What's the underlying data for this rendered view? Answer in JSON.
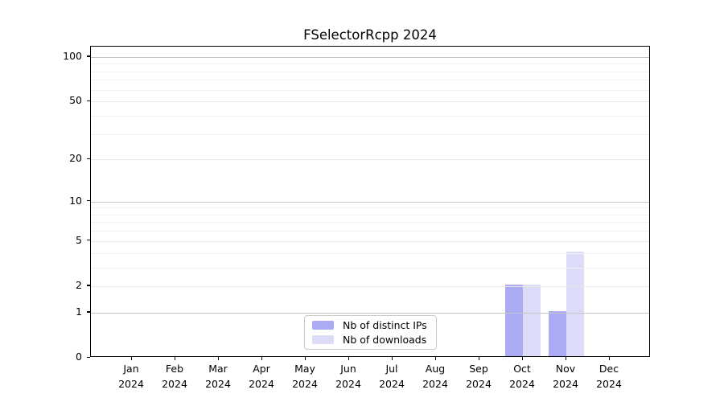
{
  "chart_data": {
    "type": "bar",
    "title": "FSelectorRcpp 2024",
    "categories": [
      "Jan 2024",
      "Feb 2024",
      "Mar 2024",
      "Apr 2024",
      "May 2024",
      "Jun 2024",
      "Jul 2024",
      "Aug 2024",
      "Sep 2024",
      "Oct 2024",
      "Nov 2024",
      "Dec 2024"
    ],
    "series": [
      {
        "name": "Nb of distinct IPs",
        "color": "#aaaaf5",
        "values": [
          0,
          0,
          0,
          0,
          0,
          0,
          0,
          0,
          0,
          2,
          1,
          0
        ]
      },
      {
        "name": "Nb of downloads",
        "color": "#dcdcf8",
        "values": [
          0,
          0,
          0,
          0,
          0,
          0,
          0,
          0,
          0,
          2,
          4,
          0
        ]
      }
    ],
    "xlabel": "",
    "ylabel": "",
    "yscale": "log1p",
    "y_ticks": [
      0,
      1,
      2,
      5,
      10,
      20,
      50,
      100
    ],
    "y_minor_ticks": [
      3,
      4,
      6,
      7,
      8,
      9,
      30,
      40,
      60,
      70,
      80,
      90
    ],
    "ylim": [
      0,
      118
    ],
    "grid": true,
    "grid_over_bars": true,
    "legend_position": "bottom-center"
  }
}
